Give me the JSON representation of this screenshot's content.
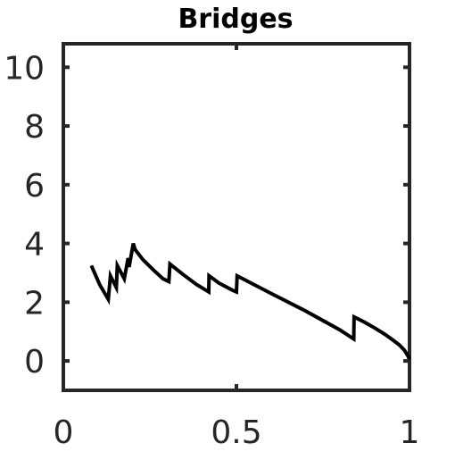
{
  "chart_data": {
    "type": "line",
    "title": "Bridges",
    "xlabel": "",
    "ylabel": "",
    "xlim": [
      0,
      1
    ],
    "ylim": [
      -1,
      10.8
    ],
    "xticks": [
      0,
      0.5,
      1
    ],
    "xtick_labels": [
      "0",
      "0.5",
      "1"
    ],
    "yticks": [
      0,
      2,
      4,
      6,
      8,
      10
    ],
    "ytick_labels": [
      "0",
      "2",
      "4",
      "6",
      "8",
      "10"
    ],
    "grid": false,
    "box": true,
    "series": [
      {
        "color": "#000000",
        "x": [
          0.081,
          0.105,
          0.13,
          0.136,
          0.153,
          0.156,
          0.176,
          0.187,
          0.19,
          0.202,
          0.207,
          0.23,
          0.26,
          0.288,
          0.305,
          0.308,
          0.345,
          0.385,
          0.42,
          0.421,
          0.45,
          0.49,
          0.5,
          0.502,
          0.6,
          0.7,
          0.8,
          0.839,
          0.84,
          0.87,
          0.9,
          0.93,
          0.95,
          0.97,
          0.985,
          0.995,
          1.0
        ],
        "y": [
          3.25,
          2.6,
          2.1,
          2.9,
          2.5,
          3.25,
          2.8,
          3.5,
          3.2,
          4.0,
          3.8,
          3.45,
          3.1,
          2.8,
          2.7,
          3.3,
          2.95,
          2.6,
          2.35,
          2.9,
          2.65,
          2.4,
          2.35,
          2.9,
          2.3,
          1.7,
          1.05,
          0.75,
          1.5,
          1.32,
          1.12,
          0.9,
          0.73,
          0.55,
          0.37,
          0.18,
          0.05
        ]
      }
    ]
  }
}
